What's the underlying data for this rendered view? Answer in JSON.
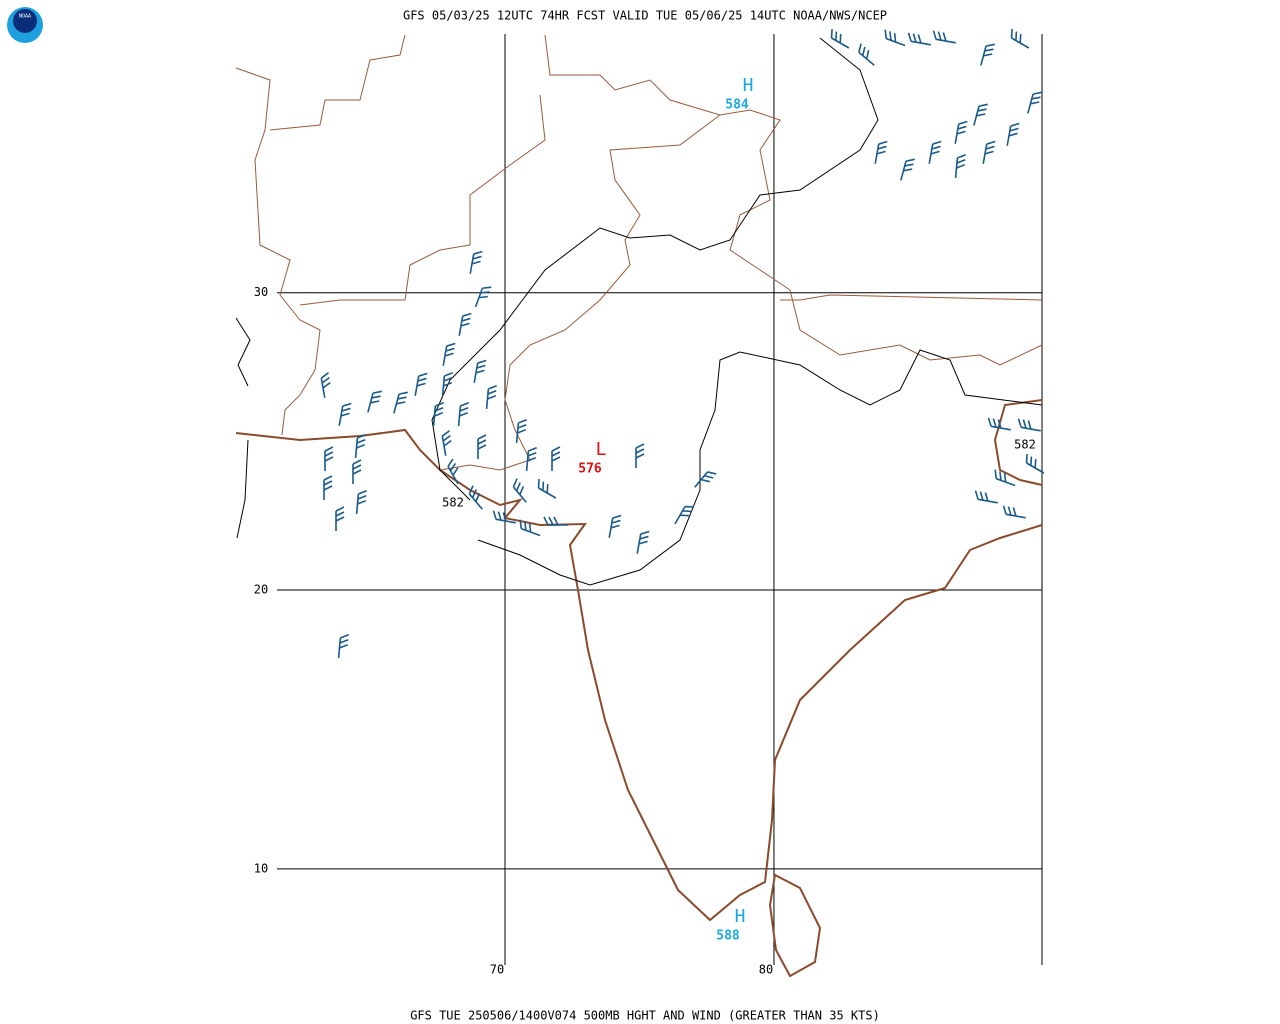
{
  "header": {
    "logo": "NOAA",
    "title": "GFS 05/03/25 12UTC 74HR FCST VALID TUE 05/06/25 14UTC NOAA/NWS/NCEP"
  },
  "footer": {
    "caption": "GFS TUE 250506/1400V074 500MB HGHT AND WIND (GREATER THAN 35 KTS)"
  },
  "map": {
    "latitudes": [
      30,
      20,
      10
    ],
    "longitudes": [
      70,
      80
    ],
    "pressure_centers": [
      {
        "label": "H",
        "value": 584
      },
      {
        "label": "L",
        "value": 576
      },
      {
        "label": "H",
        "value": 588
      }
    ],
    "contour_labels": [
      582,
      582
    ]
  }
}
